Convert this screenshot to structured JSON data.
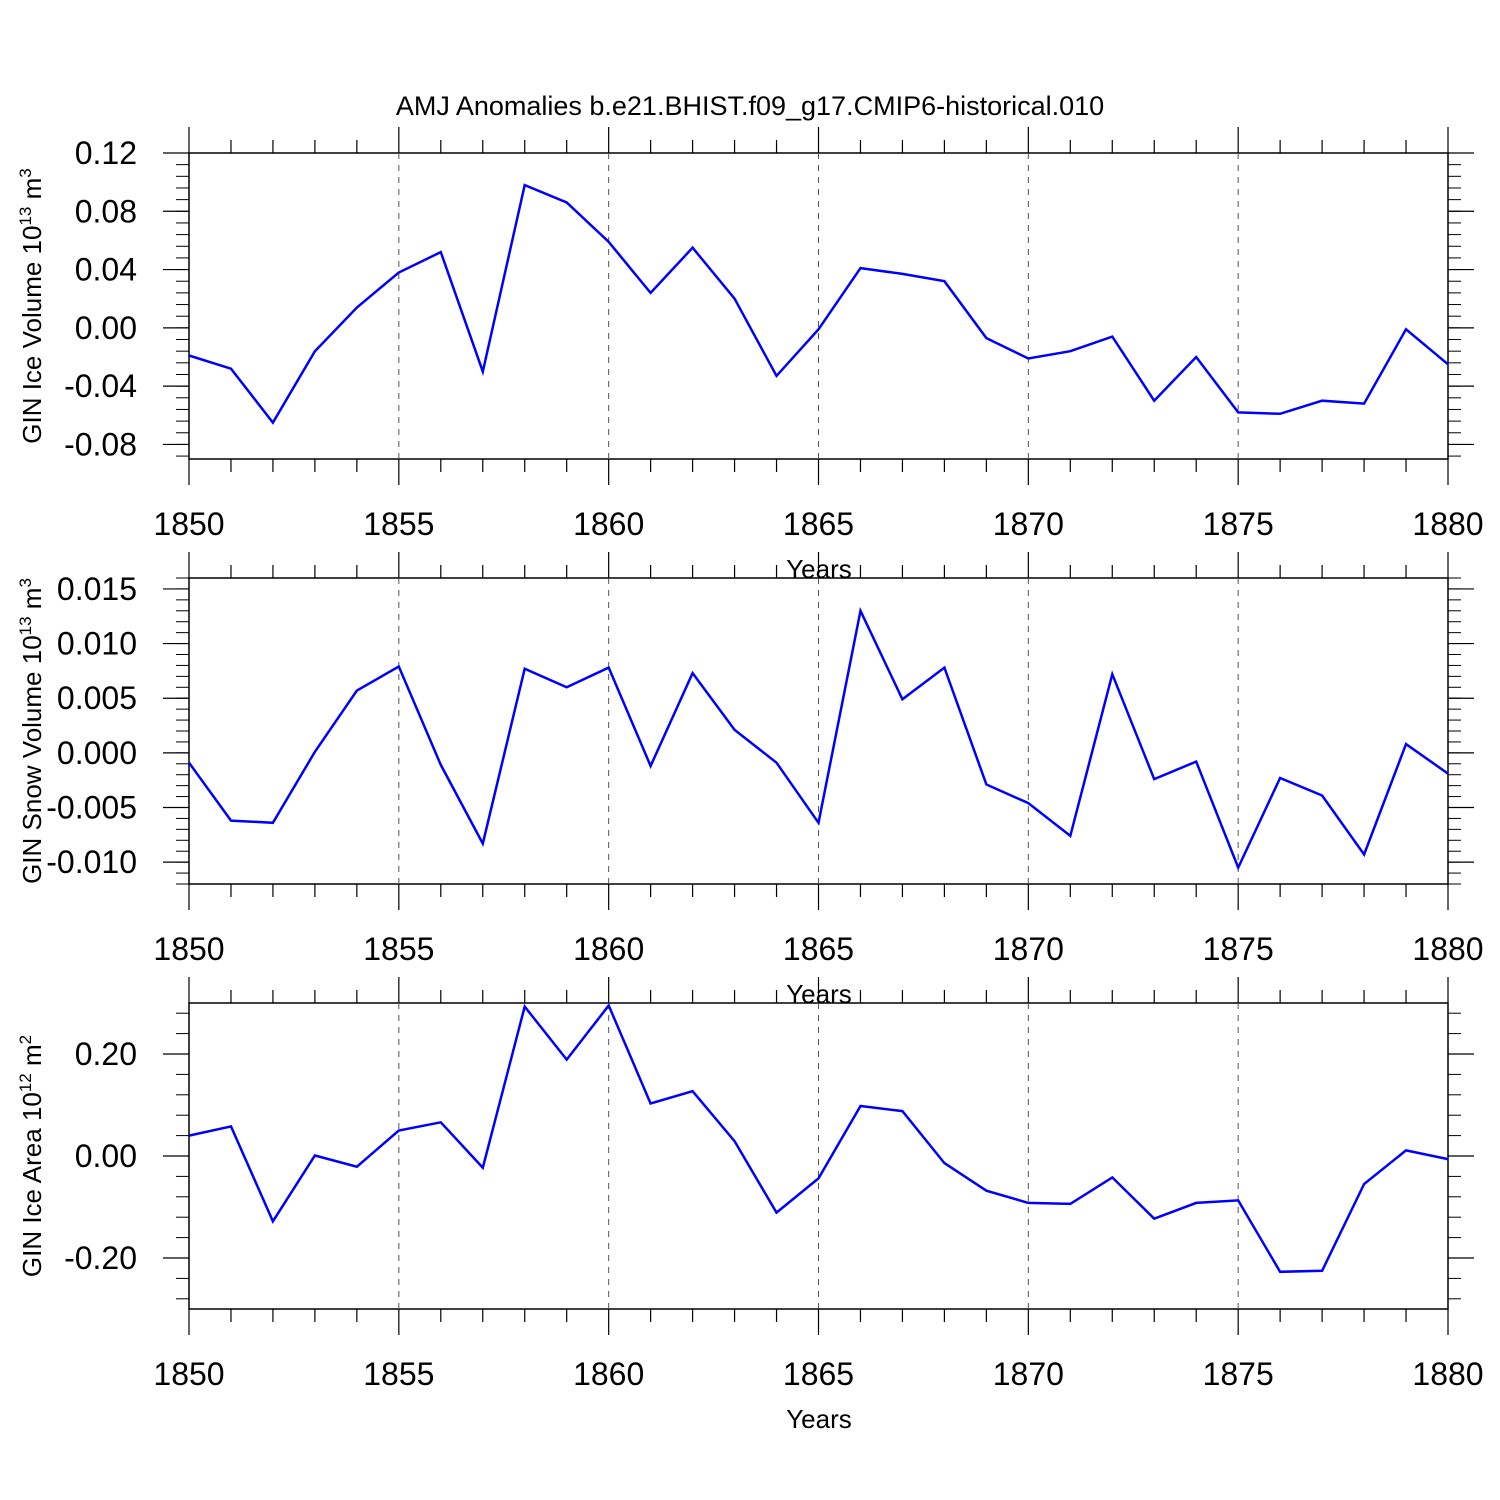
{
  "title": "AMJ Anomalies b.e21.BHIST.f09_g17.CMIP6-historical.010",
  "line_color": "#0000ff",
  "chart_data": [
    {
      "type": "line",
      "title": "AMJ Anomalies b.e21.BHIST.f09_g17.CMIP6-historical.010",
      "xlabel": "Years",
      "ylabel": {
        "prefix": "GIN Ice Volume 10",
        "exp1": "13",
        "mid": " m",
        "exp2": "3"
      },
      "xlim": [
        1850,
        1880
      ],
      "ylim": [
        -0.09,
        0.12
      ],
      "xticks": [
        "1850",
        "1855",
        "1860",
        "1865",
        "1870",
        "1875",
        "1880"
      ],
      "yticks": [
        "0.12",
        "0.08",
        "0.04",
        "0.00",
        "-0.04",
        "-0.08"
      ],
      "grid": "vertical dashed at major x ticks",
      "series": [
        {
          "name": "GIN Ice Volume",
          "x": [
            1850,
            1851,
            1852,
            1853,
            1854,
            1855,
            1856,
            1857,
            1858,
            1859,
            1860,
            1861,
            1862,
            1863,
            1864,
            1865,
            1866,
            1867,
            1868,
            1869,
            1870,
            1871,
            1872,
            1873,
            1874,
            1875,
            1876,
            1877,
            1878,
            1879,
            1880
          ],
          "values": [
            -0.019,
            -0.028,
            -0.065,
            -0.016,
            0.014,
            0.038,
            0.052,
            -0.03,
            0.098,
            0.086,
            0.059,
            0.024,
            0.055,
            0.02,
            -0.033,
            -0.001,
            0.041,
            0.037,
            0.032,
            -0.007,
            -0.021,
            -0.016,
            -0.006,
            -0.05,
            -0.02,
            -0.058,
            -0.059,
            -0.05,
            -0.052,
            -0.001,
            -0.025
          ]
        }
      ]
    },
    {
      "type": "line",
      "xlabel": "Years",
      "ylabel": {
        "prefix": "GIN Snow Volume 10",
        "exp1": "13",
        "mid": " m",
        "exp2": "3"
      },
      "xlim": [
        1850,
        1880
      ],
      "ylim": [
        -0.012,
        0.016
      ],
      "xticks": [
        "1850",
        "1855",
        "1860",
        "1865",
        "1870",
        "1875",
        "1880"
      ],
      "yticks": [
        "0.015",
        "0.010",
        "0.005",
        "0.000",
        "-0.005",
        "-0.010"
      ],
      "grid": "vertical dashed at major x ticks",
      "series": [
        {
          "name": "GIN Snow Volume",
          "x": [
            1850,
            1851,
            1852,
            1853,
            1854,
            1855,
            1856,
            1857,
            1858,
            1859,
            1860,
            1861,
            1862,
            1863,
            1864,
            1865,
            1866,
            1867,
            1868,
            1869,
            1870,
            1871,
            1872,
            1873,
            1874,
            1875,
            1876,
            1877,
            1878,
            1879,
            1880
          ],
          "values": [
            -0.0009,
            -0.0062,
            -0.0064,
            0.0001,
            0.0057,
            0.0079,
            -0.0011,
            -0.0083,
            0.0077,
            0.006,
            0.0078,
            -0.0012,
            0.0073,
            0.0021,
            -0.0009,
            -0.0064,
            0.013,
            0.0049,
            0.0078,
            -0.0029,
            -0.0046,
            -0.0076,
            0.0072,
            -0.0024,
            -0.0008,
            -0.0105,
            -0.0023,
            -0.0039,
            -0.0093,
            0.0008,
            -0.0019
          ]
        }
      ]
    },
    {
      "type": "line",
      "xlabel": "Years",
      "ylabel": {
        "prefix": "GIN Ice Area 10",
        "exp1": "12",
        "mid": " m",
        "exp2": "2"
      },
      "xlim": [
        1850,
        1880
      ],
      "ylim": [
        -0.3,
        0.3
      ],
      "xticks": [
        "1850",
        "1855",
        "1860",
        "1865",
        "1870",
        "1875",
        "1880"
      ],
      "yticks": [
        "0.20",
        "0.00",
        "-0.20"
      ],
      "grid": "vertical dashed at major x ticks",
      "series": [
        {
          "name": "GIN Ice Area",
          "x": [
            1850,
            1851,
            1852,
            1853,
            1854,
            1855,
            1856,
            1857,
            1858,
            1859,
            1860,
            1861,
            1862,
            1863,
            1864,
            1865,
            1866,
            1867,
            1868,
            1869,
            1870,
            1871,
            1872,
            1873,
            1874,
            1875,
            1876,
            1877,
            1878,
            1879,
            1880
          ],
          "values": [
            0.04,
            0.058,
            -0.128,
            0.001,
            -0.021,
            0.05,
            0.066,
            -0.023,
            0.293,
            0.189,
            0.295,
            0.103,
            0.127,
            0.029,
            -0.111,
            -0.044,
            0.098,
            0.088,
            -0.014,
            -0.068,
            -0.092,
            -0.094,
            -0.042,
            -0.123,
            -0.092,
            -0.087,
            -0.227,
            -0.225,
            -0.055,
            0.011,
            -0.006
          ]
        }
      ]
    }
  ]
}
